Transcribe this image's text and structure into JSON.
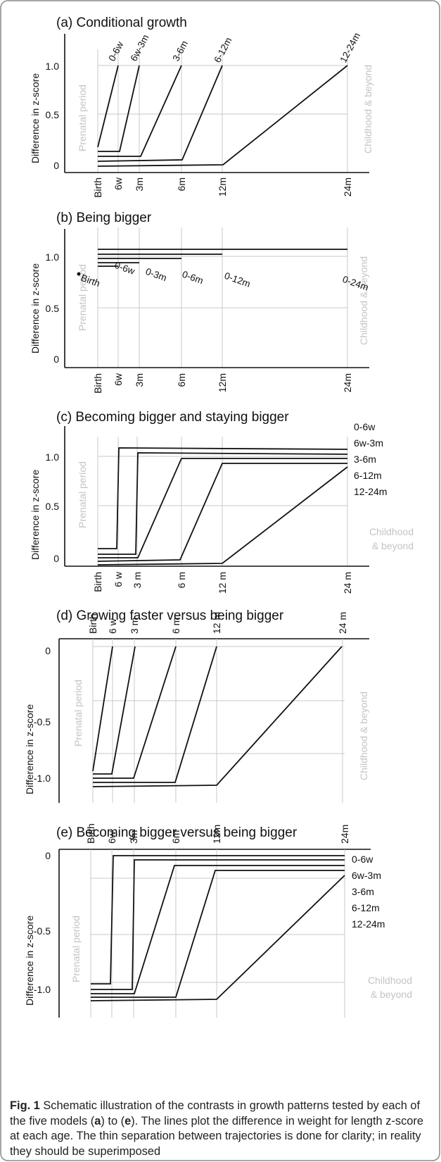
{
  "charts": [
    {
      "id": "a",
      "title": "(a) Conditional growth",
      "ylabel": "Difference in z-score",
      "y_ticks": [
        "1.0",
        "0.5",
        "0"
      ],
      "x_ticks": [
        "Birth",
        "6w",
        "3m",
        "6m",
        "12m",
        "24m"
      ],
      "left_label": "Prenatal period",
      "right_label": [
        "Childhood & beyond"
      ],
      "segment_labels": [
        "0-6w",
        "6w-3m",
        "3-6m",
        "6-12m",
        "12-24m"
      ]
    },
    {
      "id": "b",
      "title": "(b) Being bigger",
      "ylabel": "Difference in z-score",
      "y_ticks": [
        "1.0",
        "0.5",
        "0"
      ],
      "x_ticks": [
        "Birth",
        "6w",
        "3m",
        "6m",
        "12m",
        "24m"
      ],
      "left_label": "Prenatal period",
      "right_label": [
        "Childhood & beyond"
      ],
      "segment_labels": [
        "Birth",
        "0-6w",
        "0-3m",
        "0-6m",
        "0-12m",
        "0-24m"
      ]
    },
    {
      "id": "c",
      "title": "(c) Becoming bigger and staying bigger",
      "ylabel": "Difference in z-score",
      "y_ticks": [
        "1.0",
        "0.5",
        "0"
      ],
      "x_ticks": [
        "Birth",
        "6 w",
        "3 m",
        "6 m",
        "12 m",
        "24 m"
      ],
      "left_label": "Prenatal period",
      "right_label": [
        "Childhood",
        "& beyond"
      ],
      "legend": [
        "0-6w",
        "6w-3m",
        "3-6m",
        "6-12m",
        "12-24m"
      ]
    },
    {
      "id": "d",
      "title": "(d) Growing faster versus being bigger",
      "ylabel": "Difference in z-score",
      "y_ticks": [
        "0",
        "-0.5",
        "-1.0"
      ],
      "x_ticks": [
        "Birth",
        "6 w",
        "3 m",
        "6 m",
        "12 m",
        "24 m"
      ],
      "left_label": "Prenatal period",
      "right_label": [
        "Childhood & beyond"
      ]
    },
    {
      "id": "e",
      "title": "(e) Becoming bigger versus being bigger",
      "ylabel": "Difference in z-score",
      "y_ticks": [
        "0",
        "-0.5",
        "-1.0"
      ],
      "x_ticks": [
        "Birth",
        "6w",
        "3m",
        "6m",
        "12m",
        "24m"
      ],
      "left_label": "Prenatal period",
      "right_label": [
        "Childhood",
        "& beyond"
      ],
      "legend": [
        "0-6w",
        "6w-3m",
        "3-6m",
        "6-12m",
        "12-24m"
      ]
    }
  ],
  "caption": {
    "label": "Fig. 1",
    "text": [
      " Schematic illustration of the contrasts in growth patterns tested by each of the five models (",
      "a",
      ") to (",
      "e",
      "). The lines plot the difference in weight for length z-score at each age. The thin separation between trajectories is done for clarity; in reality they should be superimposed"
    ]
  }
}
